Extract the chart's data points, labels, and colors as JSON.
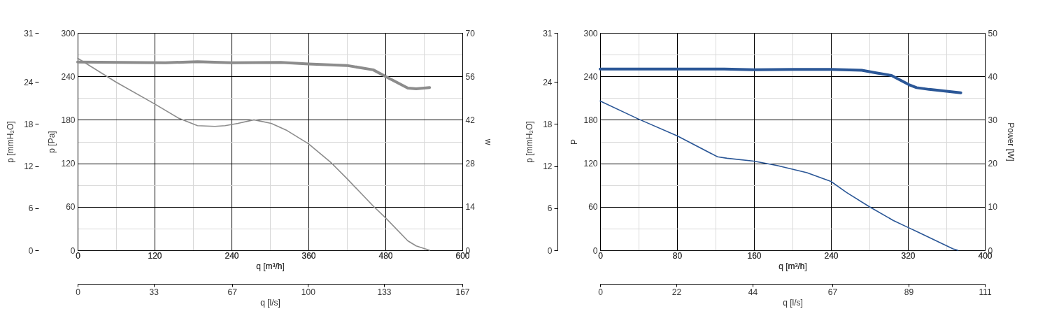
{
  "chart_data": [
    {
      "type": "line",
      "xlabel": "q [m³/h]",
      "x2label": "q [l/s]",
      "ylabel": "p [Pa]",
      "y2label": "w",
      "y3label": "p [mmH₂O]",
      "xlim": [
        0,
        600
      ],
      "xticks": [
        0,
        {
          "value": 60,
          "label": null
        },
        120,
        {
          "value": 180,
          "label": null
        },
        240,
        {
          "value": 300,
          "label": null
        },
        360,
        {
          "value": 420,
          "label": null
        },
        480,
        {
          "value": 540,
          "label": null
        },
        600
      ],
      "x2lim": [
        0,
        167
      ],
      "x2ticks": [
        0,
        33,
        67,
        100,
        133,
        167
      ],
      "ylim": [
        0,
        300
      ],
      "yticks": [
        0,
        {
          "value": 30,
          "label": null
        },
        60,
        {
          "value": 90,
          "label": null
        },
        120,
        {
          "value": 150,
          "label": null
        },
        180,
        {
          "value": 210,
          "label": null
        },
        240,
        {
          "value": 270,
          "label": null
        },
        300
      ],
      "y2lim": [
        0,
        70
      ],
      "y2ticks": [
        0,
        14,
        28,
        42,
        56,
        70
      ],
      "y3lim": [
        0,
        31
      ],
      "y3ticks": [
        0,
        6,
        12,
        18,
        24,
        31
      ],
      "grid": true,
      "series": [
        {
          "color": "#8c8c8c",
          "x": [
            0,
            60,
            120,
            158,
            187,
            214,
            230,
            250,
            275,
            302,
            325,
            360,
            394,
            420,
            461,
            480,
            515,
            528,
            549
          ],
          "values": [
            265,
            232,
            202,
            182,
            172,
            171,
            172,
            175,
            180,
            175,
            166,
            147,
            122,
            99,
            61,
            45,
            13,
            6,
            0
          ]
        },
        {
          "axis": "y2",
          "color": "#8c8c8c",
          "x": [
            0,
            137,
            187,
            240,
            317,
            360,
            420,
            461,
            480,
            515,
            528,
            549
          ],
          "values": [
            60.6,
            60.4,
            60.7,
            60.4,
            60.5,
            60.0,
            59.5,
            58.1,
            56.0,
            52.2,
            52.0,
            52.4
          ]
        }
      ]
    },
    {
      "type": "line",
      "xlabel": "q [m³/h]",
      "x2label": "q [l/s]",
      "ylabel": "P",
      "y2label": "Power [W]",
      "y3label": "p [mmH₂O]",
      "xlim": [
        0,
        400
      ],
      "xticks": [
        0,
        {
          "value": 40,
          "label": null
        },
        80,
        {
          "value": 120,
          "label": null
        },
        160,
        {
          "value": 200,
          "label": null
        },
        240,
        {
          "value": 280,
          "label": null
        },
        320,
        {
          "value": 360,
          "label": null
        },
        400
      ],
      "x2lim": [
        0,
        111
      ],
      "x2ticks": [
        0,
        22,
        44,
        67,
        89,
        111
      ],
      "ylim": [
        0,
        300
      ],
      "yticks": [
        0,
        {
          "value": 30,
          "label": null
        },
        60,
        {
          "value": 90,
          "label": null
        },
        120,
        {
          "value": 150,
          "label": null
        },
        180,
        {
          "value": 210,
          "label": null
        },
        240,
        {
          "value": 270,
          "label": null
        },
        300
      ],
      "y2lim": [
        0,
        50
      ],
      "y2ticks": [
        0,
        10,
        20,
        30,
        40,
        50
      ],
      "y3lim": [
        0,
        31
      ],
      "y3ticks": [
        0,
        6,
        12,
        18,
        24,
        31
      ],
      "grid": true,
      "series": [
        {
          "color": "#2b5797",
          "x": [
            0,
            40,
            80,
            122,
            132,
            160,
            184,
            215,
            240,
            256,
            280,
            305,
            321,
            329,
            367,
            372
          ],
          "values": [
            206,
            181,
            158,
            129,
            127,
            123,
            117,
            107,
            95,
            80,
            60,
            41,
            31,
            26,
            2,
            0
          ]
        },
        {
          "axis": "y2",
          "color": "#2b5797",
          "x": [
            0,
            129,
            160,
            201,
            240,
            272,
            287,
            303,
            321,
            329,
            342,
            375
          ],
          "values": [
            41.7,
            41.7,
            41.5,
            41.6,
            41.6,
            41.4,
            40.8,
            40.2,
            38.1,
            37.4,
            37.0,
            36.2
          ]
        }
      ]
    }
  ]
}
